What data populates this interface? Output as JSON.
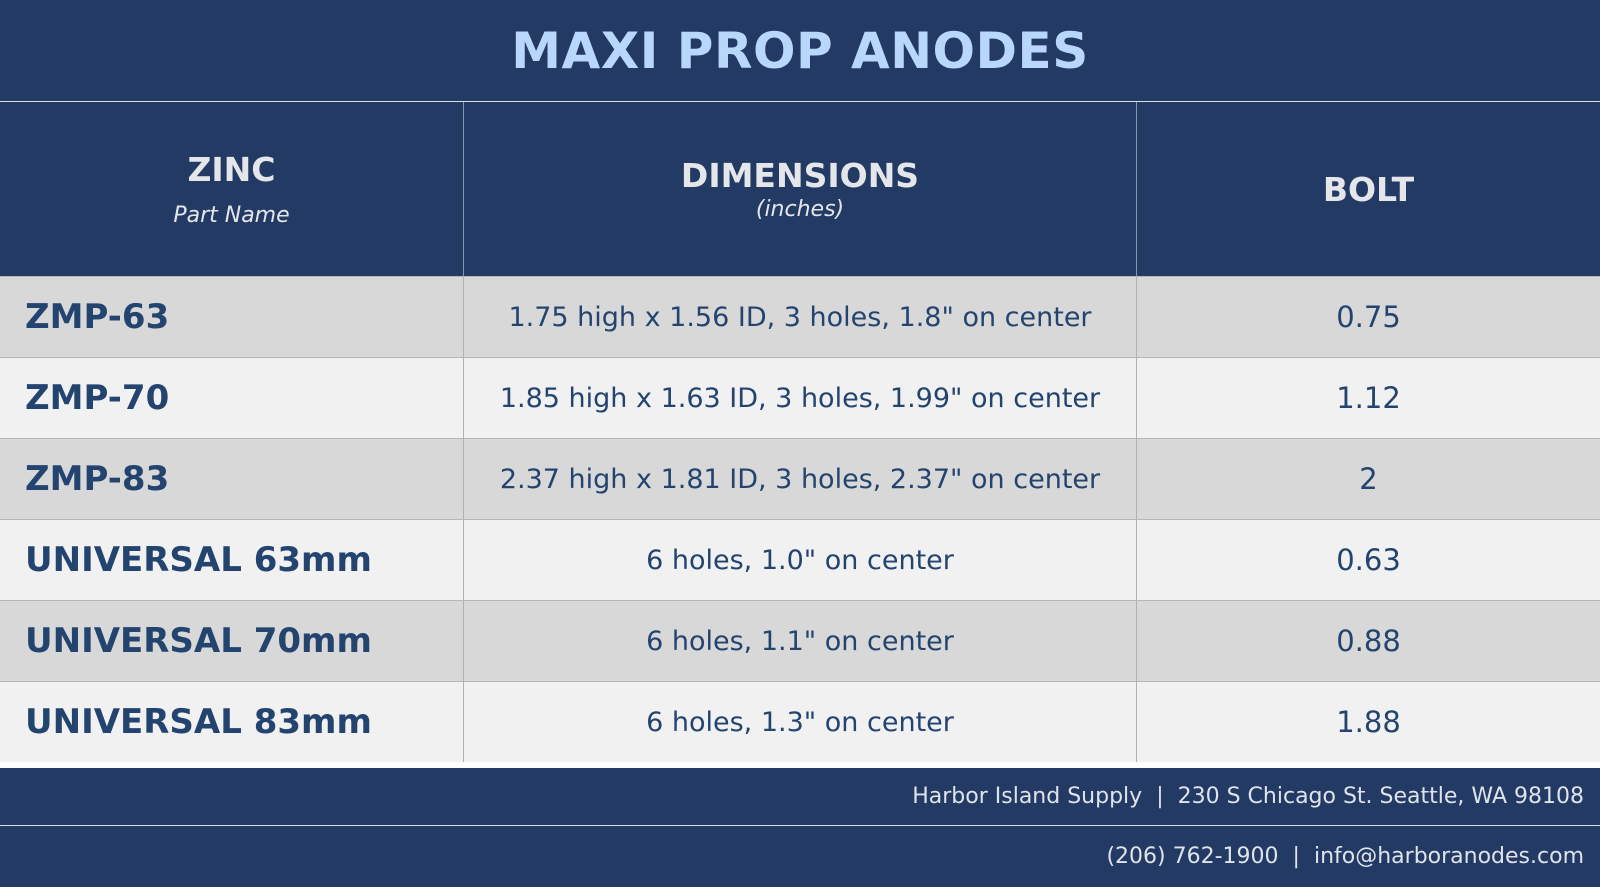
{
  "title": "MAXI PROP ANODES",
  "header": {
    "col1_main": "ZINC",
    "col1_sub": "Part Name",
    "col2_main": "DIMENSIONS",
    "col2_sub": "(inches)",
    "col3_main": "BOLT"
  },
  "rows": [
    {
      "part": "ZMP-63",
      "dimensions": "1.75 high x 1.56 ID, 3 holes, 1.8\" on center",
      "bolt": "0.75"
    },
    {
      "part": "ZMP-70",
      "dimensions": "1.85 high x 1.63 ID, 3 holes, 1.99\" on center",
      "bolt": "1.12"
    },
    {
      "part": "ZMP-83",
      "dimensions": "2.37 high x 1.81 ID, 3 holes, 2.37\" on center",
      "bolt": "2"
    },
    {
      "part": "UNIVERSAL 63mm",
      "dimensions": "6 holes, 1.0\" on center",
      "bolt": "0.63"
    },
    {
      "part": "UNIVERSAL 70mm",
      "dimensions": "6 holes, 1.1\" on center",
      "bolt": "0.88"
    },
    {
      "part": "UNIVERSAL 83mm",
      "dimensions": "6 holes, 1.3\" on center",
      "bolt": "1.88"
    }
  ],
  "footer": {
    "company": "Harbor Island Supply",
    "address": "230 S Chicago St. Seattle, WA 98108",
    "phone": "(206) 762-1900",
    "email": "info@harboranodes.com",
    "separator": "|"
  },
  "colors": {
    "navy": "#233a64",
    "title_text": "#b9d6fb",
    "row_dark": "#d8d8d8",
    "row_light": "#f1f1f1",
    "cell_text": "#244470"
  }
}
